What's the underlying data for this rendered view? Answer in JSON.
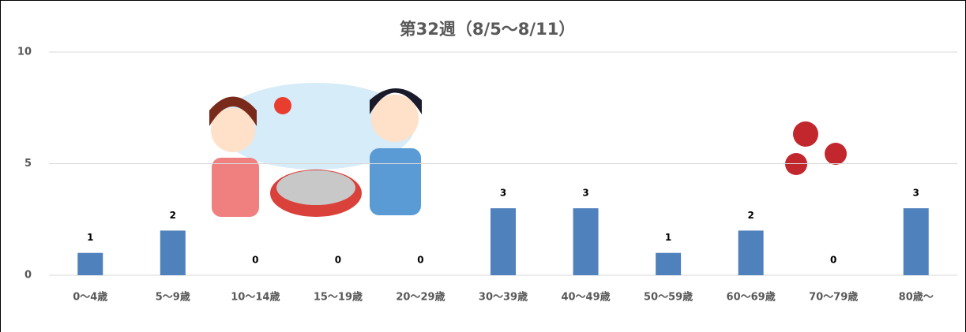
{
  "chart_data": {
    "type": "bar",
    "title": "第32週（8/5～8/11）",
    "categories": [
      "0～4歳",
      "5～9歳",
      "10～14歳",
      "15～19歳",
      "20～29歳",
      "30～39歳",
      "40～49歳",
      "50～59歳",
      "60～69歳",
      "70～79歳",
      "80歳～"
    ],
    "values": [
      1,
      2,
      0,
      0,
      0,
      3,
      3,
      1,
      2,
      0,
      3
    ],
    "color": "#4f81bd",
    "ylim": [
      0,
      10
    ],
    "yticks": [
      0,
      5,
      10
    ],
    "grid": true
  }
}
